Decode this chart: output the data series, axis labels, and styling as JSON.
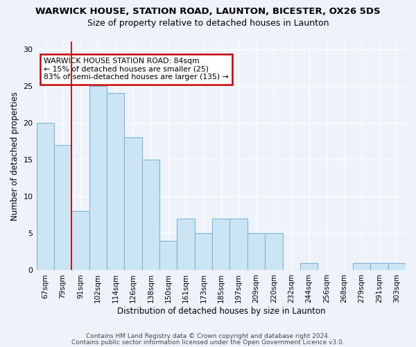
{
  "title": "WARWICK HOUSE, STATION ROAD, LAUNTON, BICESTER, OX26 5DS",
  "subtitle": "Size of property relative to detached houses in Launton",
  "xlabel": "Distribution of detached houses by size in Launton",
  "ylabel": "Number of detached properties",
  "bar_color": "#cce5f5",
  "bar_edge_color": "#7ab4d8",
  "background_color": "#eef3fb",
  "categories": [
    "67sqm",
    "79sqm",
    "91sqm",
    "102sqm",
    "114sqm",
    "126sqm",
    "138sqm",
    "150sqm",
    "161sqm",
    "173sqm",
    "185sqm",
    "197sqm",
    "209sqm",
    "220sqm",
    "232sqm",
    "244sqm",
    "256sqm",
    "268sqm",
    "279sqm",
    "291sqm",
    "303sqm"
  ],
  "values": [
    20,
    17,
    8,
    25,
    24,
    18,
    15,
    4,
    7,
    5,
    7,
    7,
    5,
    5,
    0,
    1,
    0,
    0,
    1,
    1,
    1
  ],
  "ylim": [
    0,
    31
  ],
  "yticks": [
    0,
    5,
    10,
    15,
    20,
    25,
    30
  ],
  "red_line_x": 1.5,
  "annotation_text": "WARWICK HOUSE STATION ROAD: 84sqm\n← 15% of detached houses are smaller (25)\n83% of semi-detached houses are larger (135) →",
  "annotation_box_color": "white",
  "annotation_box_edge_color": "#cc0000",
  "footer_line1": "Contains HM Land Registry data © Crown copyright and database right 2024.",
  "footer_line2": "Contains public sector information licensed under the Open Government Licence v3.0."
}
